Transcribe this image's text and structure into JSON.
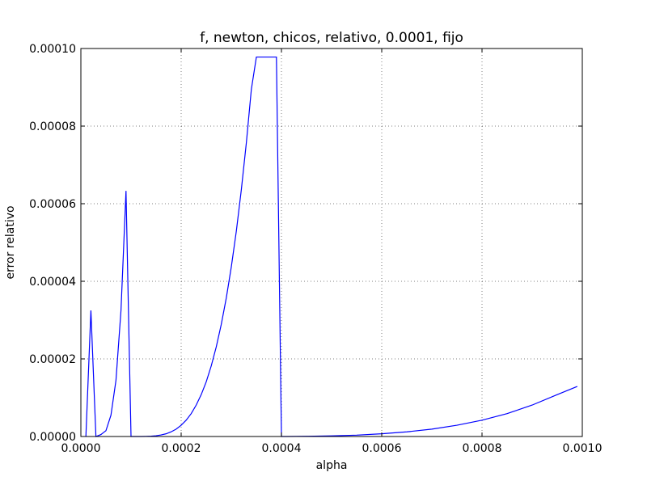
{
  "chart_data": {
    "type": "line",
    "title": "f, newton, chicos, relativo, 0.0001, fijo",
    "xlabel": "alpha",
    "ylabel": "error relativo",
    "xlim": [
      0,
      0.001
    ],
    "ylim": [
      0,
      0.0001
    ],
    "grid": true,
    "x_ticks": [
      0,
      0.0002,
      0.0004,
      0.0006,
      0.0008,
      0.001
    ],
    "x_tick_labels": [
      "0.0000",
      "0.0002",
      "0.0004",
      "0.0006",
      "0.0008",
      "0.0010"
    ],
    "y_ticks": [
      0,
      2e-05,
      4e-05,
      6e-05,
      8e-05,
      0.0001
    ],
    "y_tick_labels": [
      "0.00000",
      "0.00002",
      "0.00004",
      "0.00006",
      "0.00008",
      "0.00010"
    ],
    "series": [
      {
        "color": "#0000ff",
        "x": [
          1e-05,
          2e-05,
          3e-05,
          4e-05,
          5e-05,
          6e-05,
          7e-05,
          8e-05,
          9e-05,
          0.0001,
          0.00011,
          0.00012,
          0.00013,
          0.00014,
          0.00015,
          0.00016,
          0.00017,
          0.00018,
          0.00019,
          0.0002,
          0.00021,
          0.00022,
          0.00023,
          0.00024,
          0.00025,
          0.00026,
          0.00027,
          0.00028,
          0.00029,
          0.0003,
          0.00031,
          0.00032,
          0.00033,
          0.00034,
          0.00035,
          0.00036,
          0.00037,
          0.00038,
          0.00039,
          0.0004,
          0.00041,
          0.00045,
          0.0005,
          0.00055,
          0.0006,
          0.00065,
          0.0007,
          0.00075,
          0.0008,
          0.00085,
          0.0009,
          0.00095,
          0.00099
        ],
        "y": [
          0,
          3.25e-05,
          0,
          5e-07,
          1.5e-06,
          5.5e-06,
          1.45e-05,
          3.25e-05,
          6.33e-05,
          0,
          0,
          0,
          3e-08,
          8e-08,
          2e-07,
          4e-07,
          7e-07,
          1.2e-06,
          1.9e-06,
          2.9e-06,
          4.2e-06,
          5.9e-06,
          8.1e-06,
          1.08e-05,
          1.41e-05,
          1.82e-05,
          2.31e-05,
          2.89e-05,
          3.57e-05,
          4.37e-05,
          5.29e-05,
          6.36e-05,
          7.57e-05,
          8.95e-05,
          9.78e-05,
          9.78e-05,
          9.78e-05,
          9.78e-05,
          9.78e-05,
          0,
          0,
          5e-08,
          1.5e-07,
          3.5e-07,
          7e-07,
          1.2e-06,
          1.9e-06,
          2.9e-06,
          4.2e-06,
          5.9e-06,
          8.1e-06,
          1.08e-05,
          1.29e-05
        ]
      }
    ]
  }
}
